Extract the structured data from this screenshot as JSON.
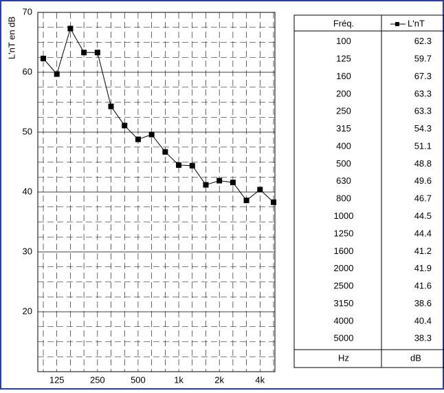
{
  "chart_data": {
    "type": "line",
    "ylabel": "L'nT en dB",
    "categories": [
      null,
      "125",
      null,
      null,
      "250",
      null,
      null,
      "500",
      null,
      null,
      "1k",
      null,
      null,
      "2k",
      null,
      null,
      "4k",
      null
    ],
    "series": [
      {
        "name": "L'nT",
        "color": "#000000",
        "values": [
          62.3,
          59.7,
          67.3,
          63.3,
          63.3,
          54.3,
          51.1,
          48.8,
          49.6,
          46.7,
          44.5,
          44.4,
          41.2,
          41.9,
          41.6,
          38.6,
          40.4,
          38.3
        ]
      }
    ],
    "ylim": [
      10,
      70
    ],
    "yticks": [
      20,
      30,
      40,
      50,
      60,
      70
    ],
    "grid": true
  },
  "table": {
    "header": "Fréq.",
    "frequencies": [
      100,
      125,
      160,
      200,
      250,
      315,
      400,
      500,
      630,
      800,
      1000,
      1250,
      1600,
      2000,
      2500,
      3150,
      4000,
      5000
    ],
    "units": [
      "Hz",
      "dB"
    ]
  }
}
